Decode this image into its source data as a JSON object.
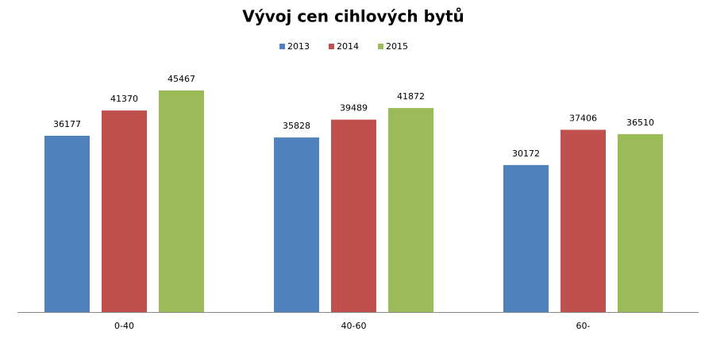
{
  "chart_data": {
    "type": "bar",
    "title": "Vývoj cen cihlových bytů",
    "categories": [
      "0-40",
      "40-60",
      "60-"
    ],
    "series": [
      {
        "name": "2013",
        "color": "#4f81bd",
        "values": [
          36177,
          35828,
          30172
        ]
      },
      {
        "name": "2014",
        "color": "#c0504d",
        "values": [
          41370,
          39489,
          37406
        ]
      },
      {
        "name": "2015",
        "color": "#9bbb59",
        "values": [
          45467,
          41872,
          36510
        ]
      }
    ]
  }
}
